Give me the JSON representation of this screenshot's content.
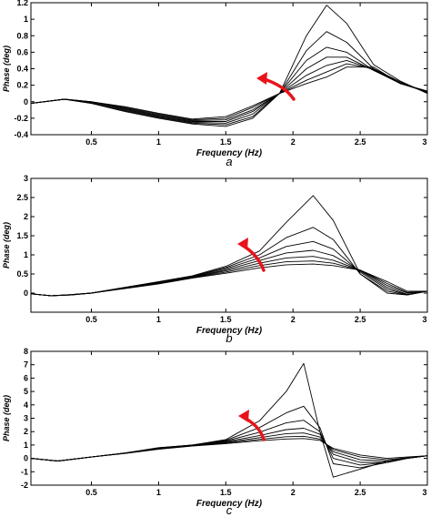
{
  "chart_data": [
    {
      "type": "line",
      "panel_label": "a",
      "xlabel": "Frequency  (Hz)",
      "ylabel": "Phase (deg)",
      "xlim": [
        0.05,
        3.0
      ],
      "ylim": [
        -0.4,
        1.2
      ],
      "xticks": [
        0.5,
        1,
        1.5,
        2,
        2.5,
        3
      ],
      "xtick_labels": [
        "0.5",
        "1",
        "1.5",
        "2",
        "2.5",
        "3"
      ],
      "yticks": [
        -0.4,
        -0.2,
        0,
        0.2,
        0.4,
        0.6,
        0.8,
        1.0,
        1.2
      ],
      "ytick_labels": [
        "-0.4",
        "-0.2",
        "0",
        "0.2",
        "0.4",
        "0.6",
        "0.8",
        "1",
        "1.2"
      ],
      "grid": false,
      "legend": "none",
      "line_color": "#000000",
      "annotation": {
        "type": "arrow",
        "color": "#e8141b",
        "direction": "up-left"
      },
      "x": [
        0.05,
        0.3,
        0.5,
        0.75,
        1.0,
        1.25,
        1.5,
        1.7,
        1.9,
        2.1,
        2.25,
        2.4,
        2.6,
        2.8,
        3.0
      ],
      "series": [
        {
          "values": [
            -0.02,
            0.03,
            -0.02,
            -0.12,
            -0.2,
            -0.27,
            -0.3,
            -0.2,
            0.1,
            0.8,
            1.17,
            0.95,
            0.45,
            0.25,
            0.1
          ]
        },
        {
          "values": [
            -0.02,
            0.03,
            -0.02,
            -0.11,
            -0.19,
            -0.26,
            -0.28,
            -0.18,
            0.1,
            0.62,
            0.85,
            0.72,
            0.4,
            0.24,
            0.11
          ]
        },
        {
          "values": [
            -0.02,
            0.03,
            -0.01,
            -0.1,
            -0.18,
            -0.25,
            -0.26,
            -0.15,
            0.1,
            0.5,
            0.66,
            0.6,
            0.38,
            0.23,
            0.11
          ]
        },
        {
          "values": [
            -0.02,
            0.03,
            -0.01,
            -0.09,
            -0.17,
            -0.24,
            -0.24,
            -0.12,
            0.1,
            0.4,
            0.54,
            0.54,
            0.38,
            0.22,
            0.12
          ]
        },
        {
          "values": [
            -0.02,
            0.03,
            0.0,
            -0.08,
            -0.16,
            -0.23,
            -0.22,
            -0.1,
            0.1,
            0.32,
            0.44,
            0.5,
            0.39,
            0.22,
            0.12
          ]
        },
        {
          "values": [
            -0.02,
            0.03,
            0.0,
            -0.07,
            -0.15,
            -0.22,
            -0.2,
            -0.07,
            0.1,
            0.26,
            0.36,
            0.46,
            0.4,
            0.22,
            0.13
          ]
        },
        {
          "values": [
            -0.02,
            0.03,
            0.0,
            -0.06,
            -0.14,
            -0.21,
            -0.18,
            -0.05,
            0.1,
            0.22,
            0.3,
            0.42,
            0.42,
            0.22,
            0.13
          ]
        }
      ]
    },
    {
      "type": "line",
      "panel_label": "b",
      "xlabel": "Frequency  (Hz)",
      "ylabel": "Phase (deg)",
      "xlim": [
        0.05,
        3.0
      ],
      "ylim": [
        -0.5,
        3.0
      ],
      "xticks": [
        0.5,
        1,
        1.5,
        2,
        2.5,
        3
      ],
      "xtick_labels": [
        "0.5",
        "1",
        "1.5",
        "2",
        "2.5",
        "3"
      ],
      "yticks": [
        0,
        0.5,
        1.0,
        1.5,
        2.0,
        2.5,
        3.0
      ],
      "ytick_labels": [
        "0",
        "0.5",
        "1",
        "1.5",
        "2",
        "2.5",
        "3"
      ],
      "grid": false,
      "legend": "none",
      "line_color": "#000000",
      "annotation": {
        "type": "arrow",
        "color": "#e8141b",
        "direction": "up-left"
      },
      "x": [
        0.05,
        0.2,
        0.35,
        0.5,
        0.75,
        1.0,
        1.25,
        1.5,
        1.75,
        1.95,
        2.15,
        2.3,
        2.5,
        2.7,
        2.85,
        3.0
      ],
      "series": [
        {
          "values": [
            -0.02,
            -0.07,
            -0.05,
            0.0,
            0.15,
            0.3,
            0.45,
            0.7,
            1.1,
            1.85,
            2.55,
            1.9,
            0.5,
            0.0,
            -0.05,
            0.05
          ]
        },
        {
          "values": [
            -0.02,
            -0.07,
            -0.05,
            0.0,
            0.15,
            0.29,
            0.44,
            0.67,
            1.0,
            1.45,
            1.72,
            1.4,
            0.5,
            0.05,
            -0.05,
            0.05
          ]
        },
        {
          "values": [
            -0.02,
            -0.07,
            -0.05,
            0.0,
            0.14,
            0.28,
            0.43,
            0.64,
            0.92,
            1.22,
            1.35,
            1.15,
            0.55,
            0.1,
            -0.04,
            0.05
          ]
        },
        {
          "values": [
            -0.02,
            -0.07,
            -0.04,
            0.0,
            0.14,
            0.27,
            0.42,
            0.61,
            0.85,
            1.05,
            1.12,
            0.98,
            0.58,
            0.15,
            -0.03,
            0.05
          ]
        },
        {
          "values": [
            -0.02,
            -0.07,
            -0.04,
            0.0,
            0.13,
            0.26,
            0.41,
            0.58,
            0.78,
            0.92,
            0.96,
            0.86,
            0.6,
            0.2,
            0.0,
            0.05
          ]
        },
        {
          "values": [
            -0.02,
            -0.07,
            -0.04,
            0.0,
            0.13,
            0.25,
            0.4,
            0.55,
            0.72,
            0.82,
            0.84,
            0.78,
            0.6,
            0.25,
            0.02,
            0.05
          ]
        },
        {
          "values": [
            -0.02,
            -0.07,
            -0.04,
            0.0,
            0.12,
            0.24,
            0.39,
            0.52,
            0.66,
            0.74,
            0.76,
            0.72,
            0.6,
            0.3,
            0.05,
            0.05
          ]
        }
      ]
    },
    {
      "type": "line",
      "panel_label": "c",
      "xlabel": "Frequency  (Hz)",
      "ylabel": "Phase (deg)",
      "xlim": [
        0.05,
        3.0
      ],
      "ylim": [
        -2.0,
        8.0
      ],
      "xticks": [
        0.5,
        1,
        1.5,
        2,
        2.5,
        3
      ],
      "xtick_labels": [
        "0.5",
        "1",
        "1.5",
        "2",
        "2.5",
        "3"
      ],
      "yticks": [
        -2,
        -1,
        0,
        1,
        2,
        3,
        4,
        5,
        6,
        7,
        8
      ],
      "ytick_labels": [
        "-2",
        "-1",
        "0",
        "1",
        "2",
        "3",
        "4",
        "5",
        "6",
        "7",
        "8"
      ],
      "grid": false,
      "legend": "none",
      "line_color": "#000000",
      "annotation": {
        "type": "arrow",
        "color": "#e8141b",
        "direction": "up-left"
      },
      "x": [
        0.05,
        0.25,
        0.5,
        0.75,
        1.0,
        1.25,
        1.5,
        1.75,
        1.95,
        2.08,
        2.2,
        2.3,
        2.5,
        2.7,
        2.85,
        3.0
      ],
      "series": [
        {
          "values": [
            0.0,
            -0.2,
            0.1,
            0.4,
            0.8,
            1.0,
            1.4,
            2.8,
            5.0,
            7.1,
            2.0,
            -1.4,
            -0.8,
            -0.2,
            0.0,
            0.2
          ]
        },
        {
          "values": [
            0.0,
            -0.2,
            0.1,
            0.4,
            0.78,
            1.0,
            1.35,
            2.3,
            3.4,
            3.9,
            2.3,
            -0.4,
            -0.7,
            -0.3,
            0.0,
            0.2
          ]
        },
        {
          "values": [
            0.0,
            -0.2,
            0.1,
            0.4,
            0.76,
            1.0,
            1.3,
            1.95,
            2.65,
            2.85,
            2.0,
            0.0,
            -0.5,
            -0.3,
            0.0,
            0.2
          ]
        },
        {
          "values": [
            0.0,
            -0.2,
            0.1,
            0.4,
            0.74,
            0.98,
            1.25,
            1.7,
            2.15,
            2.25,
            1.8,
            0.3,
            -0.3,
            -0.3,
            0.0,
            0.2
          ]
        },
        {
          "values": [
            0.0,
            -0.2,
            0.1,
            0.39,
            0.72,
            0.96,
            1.2,
            1.55,
            1.85,
            1.9,
            1.6,
            0.5,
            -0.1,
            -0.2,
            0.0,
            0.2
          ]
        },
        {
          "values": [
            0.0,
            -0.2,
            0.1,
            0.38,
            0.7,
            0.94,
            1.15,
            1.42,
            1.62,
            1.65,
            1.45,
            0.65,
            0.1,
            -0.1,
            0.05,
            0.2
          ]
        },
        {
          "values": [
            0.0,
            -0.2,
            0.1,
            0.37,
            0.68,
            0.92,
            1.1,
            1.32,
            1.45,
            1.48,
            1.35,
            0.75,
            0.25,
            0.0,
            0.1,
            0.2
          ]
        }
      ]
    }
  ]
}
